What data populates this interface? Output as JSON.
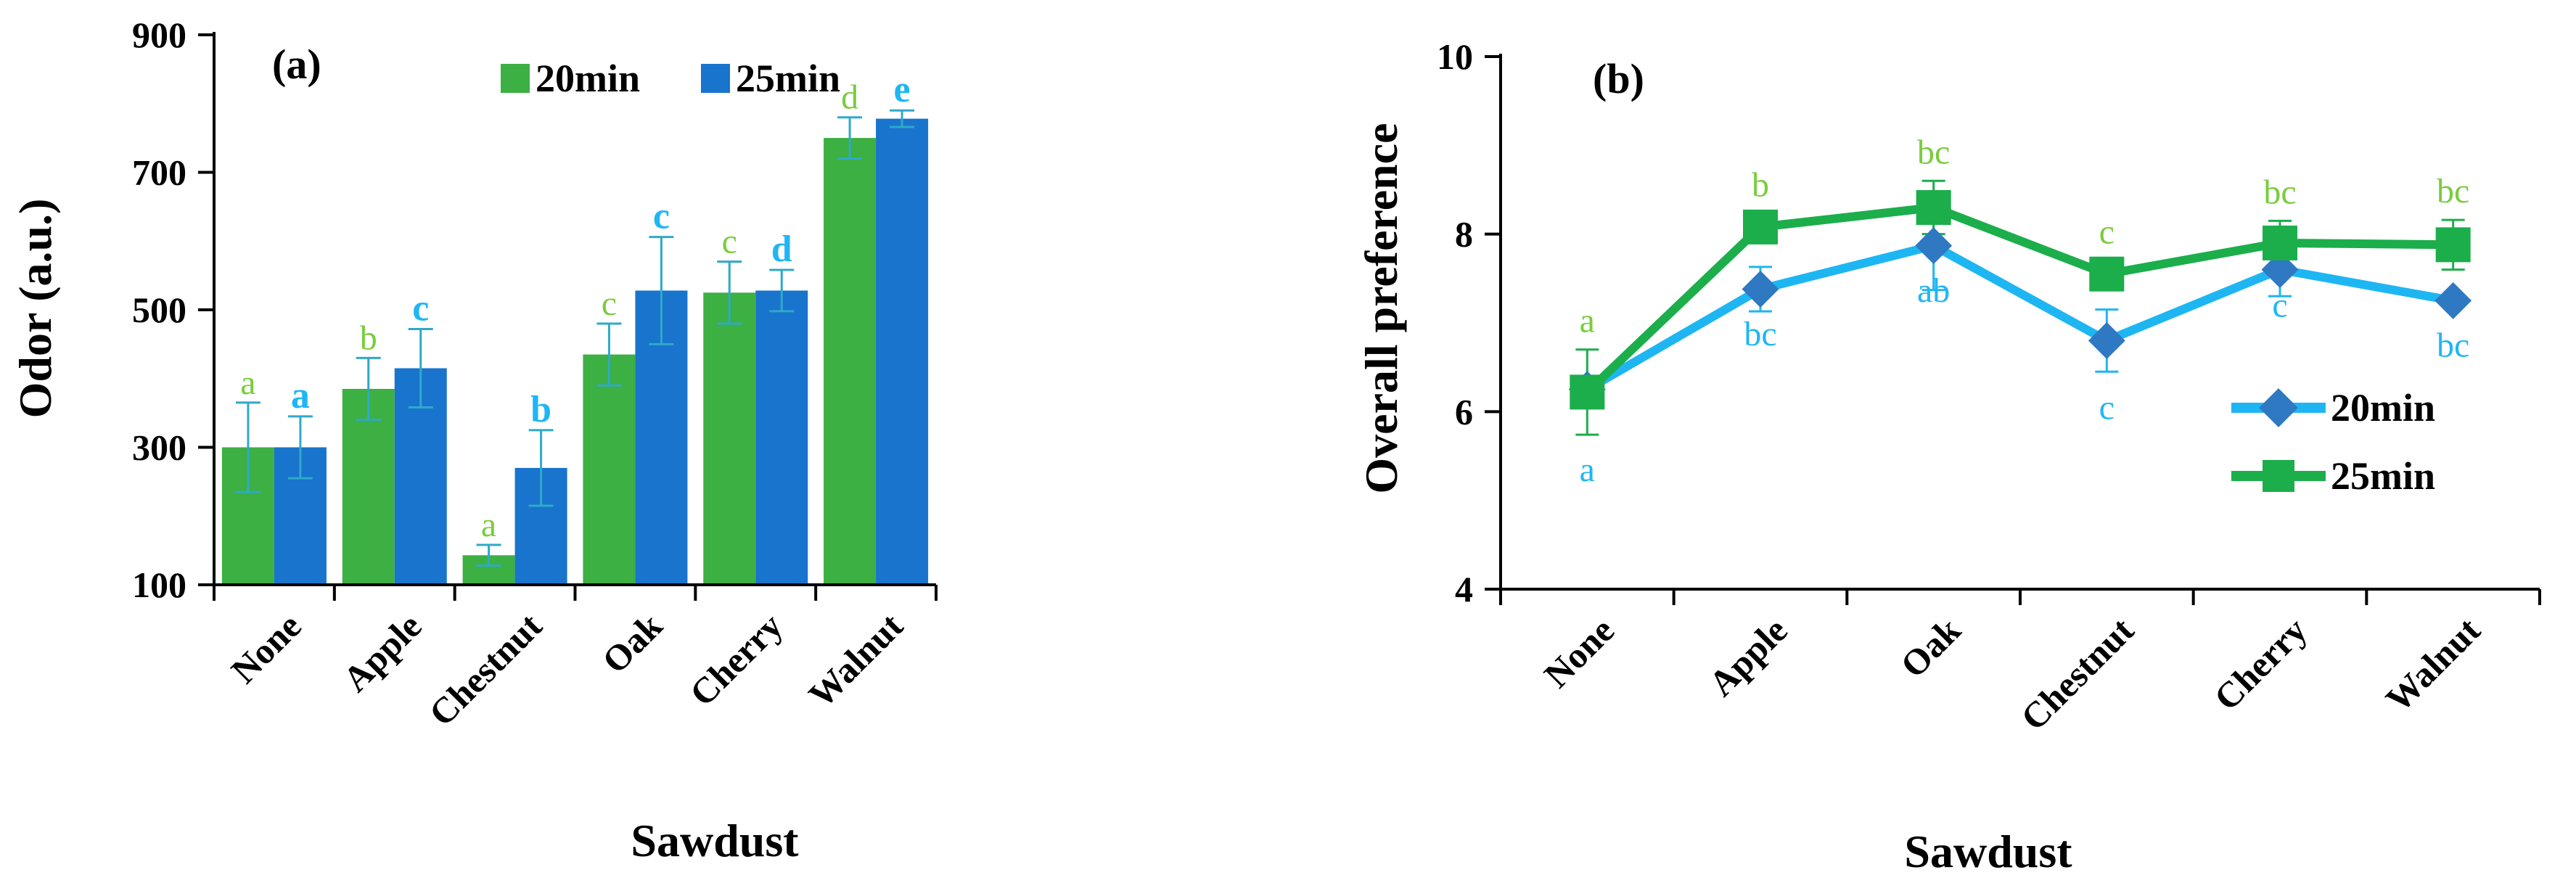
{
  "colors": {
    "green": "#3CB043",
    "blue": "#1874CD",
    "lightBlue": "#1FB6F5",
    "lightGreen": "#7ACC3E",
    "lineGreen": "#1BAE4B",
    "lineBlue": "#1EB6F2",
    "diamondBlue": "#2F78C2",
    "errTeal": "#2FA9C8"
  },
  "chart_data": [
    {
      "type": "bar",
      "panel_label": "(a)",
      "title": "",
      "xlabel": "Sawdust",
      "ylabel": "Odor (a.u.)",
      "ylim": [
        100,
        900
      ],
      "yticks": [
        100,
        300,
        500,
        700,
        900
      ],
      "ytick_labels": [
        "100",
        "300",
        "500",
        "700",
        "900"
      ],
      "categories": [
        "None",
        "Apple",
        "Chestnut",
        "Oak",
        "Cherry",
        "Walnut"
      ],
      "legend_position": "top-center",
      "series": [
        {
          "name": "20min",
          "values": [
            300,
            385,
            143,
            435,
            525,
            750
          ],
          "errors": [
            65,
            45,
            15,
            45,
            45,
            30
          ],
          "letters": [
            "a",
            "b",
            "a",
            "c",
            "c",
            "d"
          ]
        },
        {
          "name": "25min",
          "values": [
            300,
            415,
            270,
            528,
            528,
            778
          ],
          "errors": [
            45,
            57,
            55,
            78,
            30,
            12
          ],
          "letters": [
            "a",
            "c",
            "b",
            "c",
            "d",
            "e"
          ]
        }
      ]
    },
    {
      "type": "line",
      "panel_label": "(b)",
      "title": "",
      "xlabel": "Sawdust",
      "ylabel": "Overall preference",
      "ylim": [
        4,
        10
      ],
      "yticks": [
        4,
        6,
        8,
        10
      ],
      "ytick_labels": [
        "4",
        "6",
        "8",
        "10"
      ],
      "categories": [
        "None",
        "Apple",
        "Oak",
        "Chestnut",
        "Cherry",
        "Walnut"
      ],
      "legend_position": "bottom-right",
      "series": [
        {
          "name": "20min",
          "marker": "diamond",
          "values": [
            6.25,
            7.38,
            7.87,
            6.8,
            7.6,
            7.25
          ],
          "errors": [
            0.0,
            0.25,
            0.5,
            0.35,
            0.3,
            0.0
          ],
          "letters": [
            "a",
            "bc",
            "ab",
            "c",
            "c",
            "bc"
          ]
        },
        {
          "name": "25min",
          "marker": "square",
          "values": [
            6.22,
            8.08,
            8.3,
            7.55,
            7.9,
            7.88
          ],
          "errors": [
            0.48,
            0.15,
            0.3,
            0.15,
            0.25,
            0.28
          ],
          "letters": [
            "a",
            "b",
            "bc",
            "c",
            "bc",
            "bc"
          ]
        }
      ]
    }
  ]
}
